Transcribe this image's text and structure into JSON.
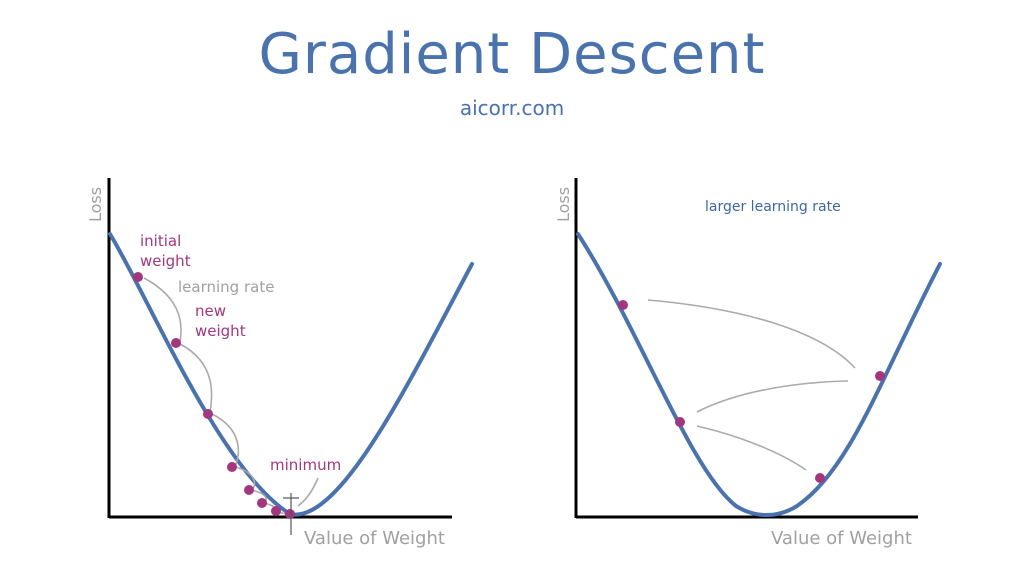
{
  "header": {
    "title": "Gradient Descent",
    "subtitle": "aicorr.com"
  },
  "left_panel": {
    "y_axis_label": "Loss",
    "x_axis_label": "Value of Weight",
    "annotations": {
      "initial_weight_line1": "initial",
      "initial_weight_line2": "weight",
      "learning_rate": "learning rate",
      "new_weight_line1": "new",
      "new_weight_line2": "weight",
      "minimum": "minimum"
    }
  },
  "right_panel": {
    "y_axis_label": "Loss",
    "x_axis_label": "Value of Weight",
    "annotation": "larger learning rate"
  },
  "colors": {
    "curve": "#4a73ad",
    "point": "#a3367e",
    "axis": "#000000",
    "arrow": "#aaaaaa"
  }
}
